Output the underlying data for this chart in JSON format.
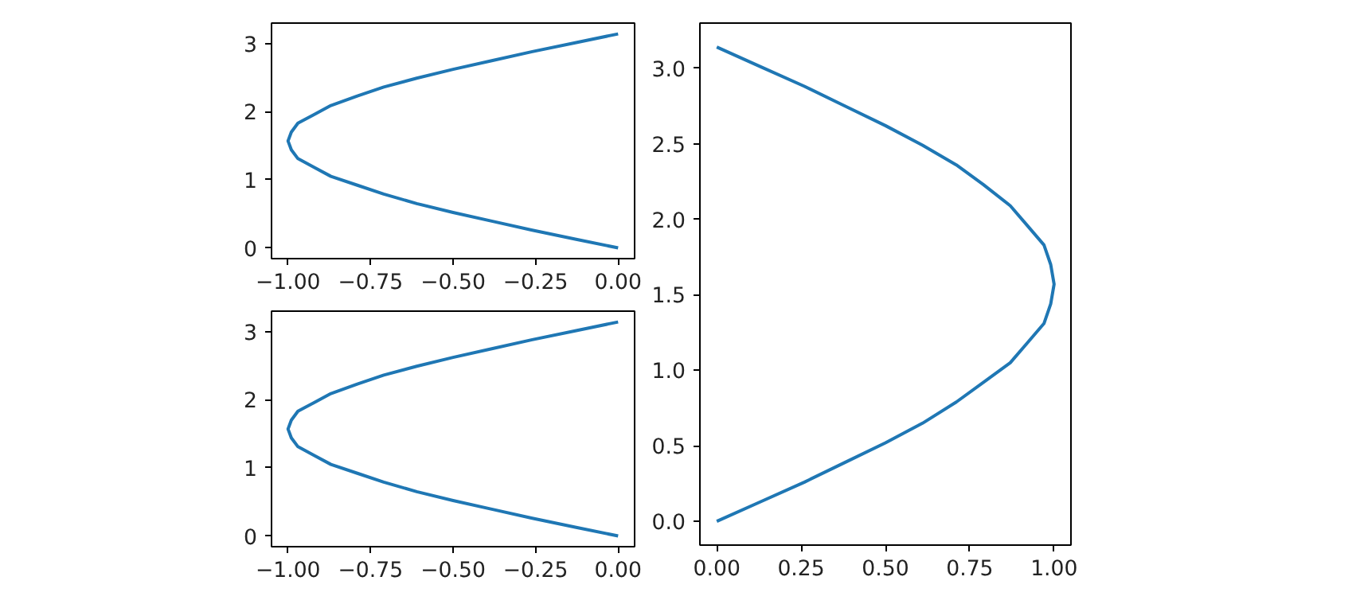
{
  "chart_data": [
    {
      "type": "line",
      "xlim": [
        -1.05,
        0.05
      ],
      "ylim": [
        -0.157,
        3.299
      ],
      "xticks": [
        {
          "value": -1,
          "label": "−1.00"
        },
        {
          "value": -0.75,
          "label": "−0.75"
        },
        {
          "value": -0.5,
          "label": "−0.50"
        },
        {
          "value": -0.25,
          "label": "−0.25"
        },
        {
          "value": 0,
          "label": "0.00"
        }
      ],
      "yticks": [
        0,
        1,
        2,
        3
      ],
      "grid": false,
      "series": [
        {
          "color": "#1f77b4",
          "x": [
            0,
            -0.13,
            -0.26,
            -0.38,
            -0.5,
            -0.61,
            -0.71,
            -0.79,
            -0.87,
            -0.92,
            -0.97,
            -0.99,
            -1.0,
            -0.99,
            -0.97,
            -0.92,
            -0.87,
            -0.79,
            -0.71,
            -0.61,
            -0.5,
            -0.38,
            -0.26,
            -0.13,
            0
          ],
          "values": [
            0,
            0.13,
            0.26,
            0.39,
            0.52,
            0.65,
            0.79,
            0.92,
            1.05,
            1.18,
            1.31,
            1.44,
            1.57,
            1.7,
            1.83,
            1.96,
            2.09,
            2.23,
            2.36,
            2.49,
            2.62,
            2.75,
            2.88,
            3.01,
            3.14
          ]
        }
      ]
    },
    {
      "type": "line",
      "xlim": [
        -1.05,
        0.05
      ],
      "ylim": [
        -0.157,
        3.299
      ],
      "xticks": [
        {
          "value": -1,
          "label": "−1.00"
        },
        {
          "value": -0.75,
          "label": "−0.75"
        },
        {
          "value": -0.5,
          "label": "−0.50"
        },
        {
          "value": -0.25,
          "label": "−0.25"
        },
        {
          "value": 0,
          "label": "0.00"
        }
      ],
      "yticks": [
        0,
        1,
        2,
        3
      ],
      "grid": false,
      "series": [
        {
          "color": "#1f77b4",
          "x": [
            0,
            -0.13,
            -0.26,
            -0.38,
            -0.5,
            -0.61,
            -0.71,
            -0.79,
            -0.87,
            -0.92,
            -0.97,
            -0.99,
            -1.0,
            -0.99,
            -0.97,
            -0.92,
            -0.87,
            -0.79,
            -0.71,
            -0.61,
            -0.5,
            -0.38,
            -0.26,
            -0.13,
            0
          ],
          "values": [
            0,
            0.13,
            0.26,
            0.39,
            0.52,
            0.65,
            0.79,
            0.92,
            1.05,
            1.18,
            1.31,
            1.44,
            1.57,
            1.7,
            1.83,
            1.96,
            2.09,
            2.23,
            2.36,
            2.49,
            2.62,
            2.75,
            2.88,
            3.01,
            3.14
          ]
        }
      ]
    },
    {
      "type": "line",
      "xlim": [
        -0.05,
        1.05
      ],
      "ylim": [
        -0.157,
        3.299
      ],
      "xticks": [
        {
          "value": 0,
          "label": "0.00"
        },
        {
          "value": 0.25,
          "label": "0.25"
        },
        {
          "value": 0.5,
          "label": "0.50"
        },
        {
          "value": 0.75,
          "label": "0.75"
        },
        {
          "value": 1,
          "label": "1.00"
        }
      ],
      "yticks": [
        {
          "value": 0,
          "label": "0.0"
        },
        {
          "value": 0.5,
          "label": "0.5"
        },
        {
          "value": 1,
          "label": "1.0"
        },
        {
          "value": 1.5,
          "label": "1.5"
        },
        {
          "value": 2,
          "label": "2.0"
        },
        {
          "value": 2.5,
          "label": "2.5"
        },
        {
          "value": 3,
          "label": "3.0"
        }
      ],
      "grid": false,
      "series": [
        {
          "color": "#1f77b4",
          "x": [
            0,
            0.13,
            0.26,
            0.38,
            0.5,
            0.61,
            0.71,
            0.79,
            0.87,
            0.92,
            0.97,
            0.99,
            1.0,
            0.99,
            0.97,
            0.92,
            0.87,
            0.79,
            0.71,
            0.61,
            0.5,
            0.38,
            0.26,
            0.13,
            0
          ],
          "values": [
            0,
            0.13,
            0.26,
            0.39,
            0.52,
            0.65,
            0.79,
            0.92,
            1.05,
            1.18,
            1.31,
            1.44,
            1.57,
            1.7,
            1.83,
            1.96,
            2.09,
            2.23,
            2.36,
            2.49,
            2.62,
            2.75,
            2.88,
            3.01,
            3.14
          ]
        }
      ]
    }
  ]
}
